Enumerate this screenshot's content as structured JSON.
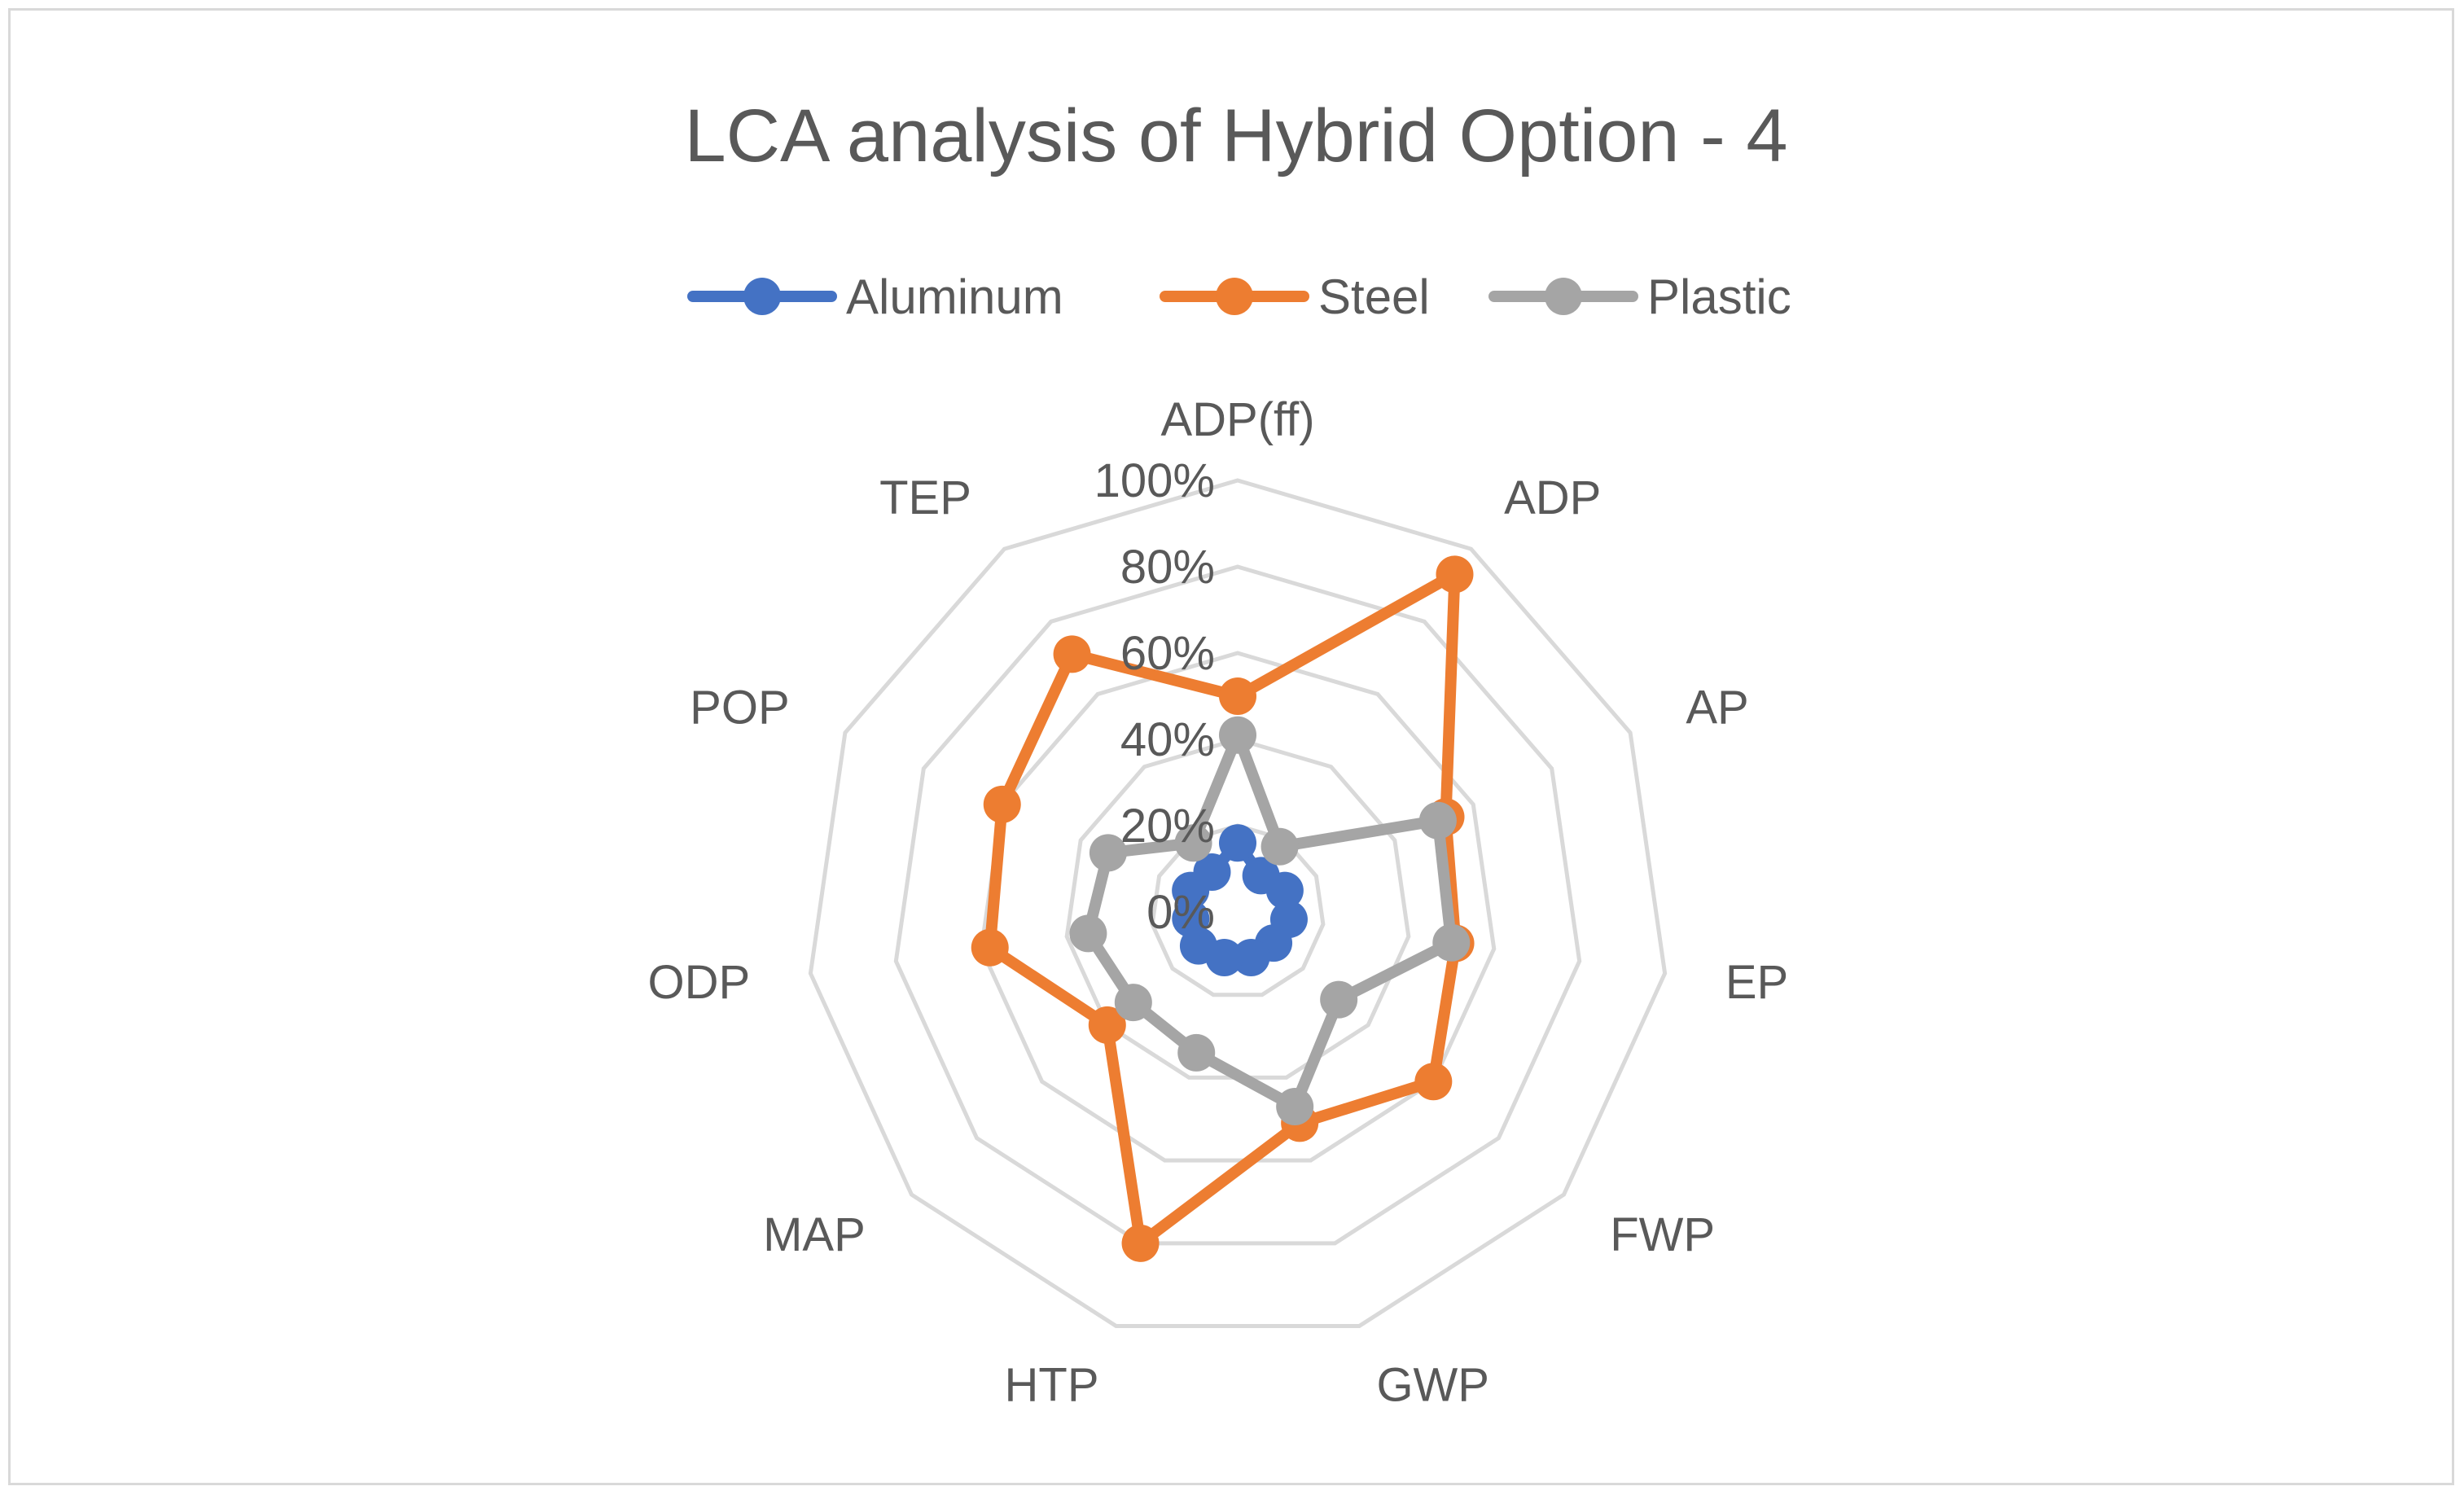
{
  "chart_data": {
    "type": "radar",
    "title": "LCA analysis of Hybrid Option - 4",
    "categories": [
      "ADP(ff)",
      "ADP",
      "AP",
      "EP",
      "FWP",
      "GWP",
      "HTP",
      "MAP",
      "ODP",
      "POP",
      "TEP"
    ],
    "radial_ticks": [
      "0%",
      "20%",
      "40%",
      "60%",
      "80%",
      "100%"
    ],
    "rlim": [
      0,
      100
    ],
    "grid": true,
    "legend_position": "top",
    "series": [
      {
        "name": "Aluminum",
        "color": "#4472C4",
        "values": [
          16,
          10,
          12,
          12,
          11,
          11,
          11,
          12,
          11,
          12,
          11
        ]
      },
      {
        "name": "Steel",
        "color": "#ED7D31",
        "values": [
          50,
          93,
          53,
          51,
          60,
          51,
          80,
          40,
          58,
          60,
          71
        ]
      },
      {
        "name": "Plastic",
        "color": "#A5A5A5",
        "values": [
          41,
          18,
          51,
          50,
          31,
          47,
          34,
          32,
          35,
          33,
          19
        ]
      }
    ]
  }
}
